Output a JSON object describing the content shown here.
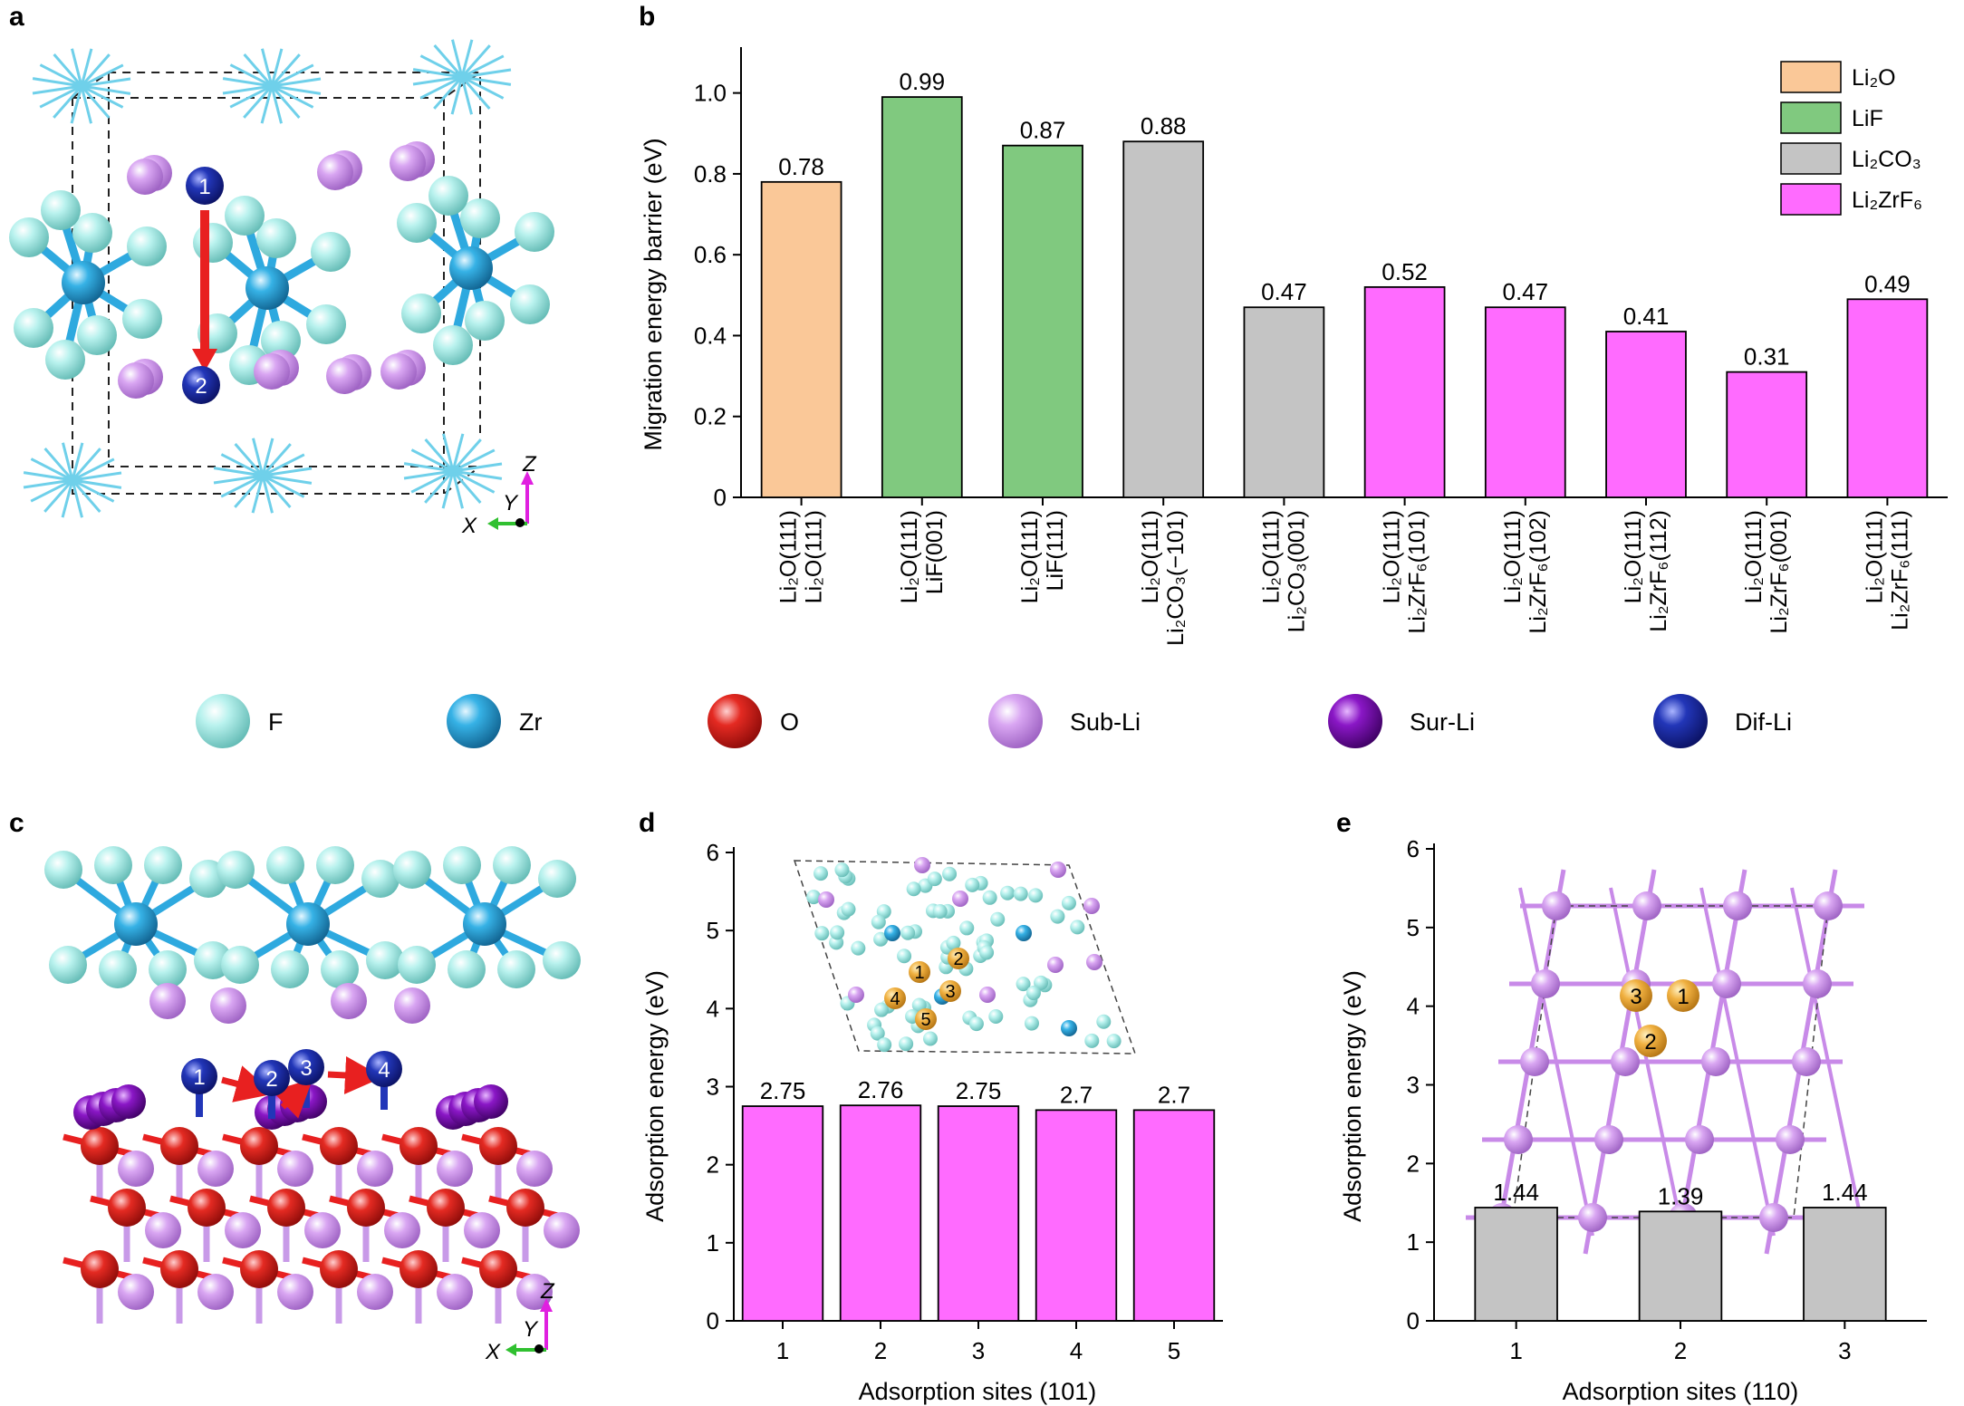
{
  "figure": {
    "panels": {
      "a": "a",
      "b": "b",
      "c": "c",
      "d": "d",
      "e": "e"
    }
  },
  "colors": {
    "Li2O": "#fac898",
    "LiF": "#80c97f",
    "Li2CO3": "#c4c4c4",
    "Li2ZrF6": "#ff6bff",
    "F": "#a8ede8",
    "Zr": "#2ea9df",
    "O": "#e0201b",
    "Sub-Li": "#d59cf0",
    "Sur-Li": "#8611c2",
    "Dif-Li": "#1f2fb3",
    "orange_site": "#f0b040",
    "bond_red": "#e82020"
  },
  "atom_legend": [
    {
      "label": "F",
      "key": "F"
    },
    {
      "label": "Zr",
      "key": "Zr"
    },
    {
      "label": "O",
      "key": "O"
    },
    {
      "label": "Sub-Li",
      "key": "Sub-Li"
    },
    {
      "label": "Sur-Li",
      "key": "Sur-Li"
    },
    {
      "label": "Dif-Li",
      "key": "Dif-Li"
    }
  ],
  "panel_a": {
    "sites": [
      "1",
      "2"
    ],
    "axes": {
      "z": "Z",
      "y": "Y",
      "x": "X"
    }
  },
  "panel_c": {
    "sites": [
      "1",
      "2",
      "3",
      "4"
    ],
    "axes": {
      "z": "Z",
      "y": "Y",
      "x": "X"
    }
  },
  "panel_d_inset": {
    "sites": [
      "1",
      "2",
      "3",
      "4",
      "5"
    ]
  },
  "panel_e_inset": {
    "sites": [
      "3",
      "1",
      "2"
    ]
  },
  "chart_data": [
    {
      "id": "b",
      "type": "bar",
      "ylabel": "Migration energy barrier (eV)",
      "ylim": [
        0,
        1.1
      ],
      "yticks": [
        0,
        0.2,
        0.4,
        0.6,
        0.8,
        1.0
      ],
      "ytick_labels": [
        "0",
        "0.2",
        "0.4",
        "0.6",
        "0.8",
        "1.0"
      ],
      "categories": [
        {
          "line1": "Li₂O(111)",
          "line2": "Li₂O(111)"
        },
        {
          "line1": "Li₂O(111)",
          "line2": "LiF(001)"
        },
        {
          "line1": "Li₂O(111)",
          "line2": "LiF(111)"
        },
        {
          "line1": "Li₂O(111)",
          "line2": "Li₂CO₃(−101)"
        },
        {
          "line1": "Li₂O(111)",
          "line2": "Li₂CO₃(001)"
        },
        {
          "line1": "Li₂O(111)",
          "line2": "Li₂ZrF₆(101)"
        },
        {
          "line1": "Li₂O(111)",
          "line2": "Li₂ZrF₆(102)"
        },
        {
          "line1": "Li₂O(111)",
          "line2": "Li₂ZrF₆(112)"
        },
        {
          "line1": "Li₂O(111)",
          "line2": "Li₂ZrF₆(001)"
        },
        {
          "line1": "Li₂O(111)",
          "line2": "Li₂ZrF₆(111)"
        }
      ],
      "values": [
        0.78,
        0.99,
        0.87,
        0.88,
        0.47,
        0.52,
        0.47,
        0.41,
        0.31,
        0.49
      ],
      "value_labels": [
        "0.78",
        "0.99",
        "0.87",
        "0.88",
        "0.47",
        "0.52",
        "0.47",
        "0.41",
        "0.31",
        "0.49"
      ],
      "groups": [
        "Li2O",
        "LiF",
        "LiF",
        "Li2CO3",
        "Li2CO3",
        "Li2ZrF6",
        "Li2ZrF6",
        "Li2ZrF6",
        "Li2ZrF6",
        "Li2ZrF6"
      ],
      "legend": [
        {
          "key": "Li2O",
          "label": "Li₂O"
        },
        {
          "key": "LiF",
          "label": "LiF"
        },
        {
          "key": "Li2CO3",
          "label": "Li₂CO₃"
        },
        {
          "key": "Li2ZrF6",
          "label": "Li₂ZrF₆"
        }
      ],
      "legend_position": "top-right"
    },
    {
      "id": "d",
      "type": "bar",
      "xlabel": "Adsorption sites (101)",
      "ylabel": "Adsorption energy (eV)",
      "ylim": [
        0,
        6
      ],
      "yticks": [
        0,
        1,
        2,
        3,
        4,
        5,
        6
      ],
      "ytick_labels": [
        "0",
        "1",
        "2",
        "3",
        "4",
        "5",
        "6"
      ],
      "categories": [
        "1",
        "2",
        "3",
        "4",
        "5"
      ],
      "values": [
        2.75,
        2.76,
        2.75,
        2.7,
        2.7
      ],
      "value_labels": [
        "2.75",
        "2.76",
        "2.75",
        "2.7",
        "2.7"
      ],
      "color_key": "Li2ZrF6"
    },
    {
      "id": "e",
      "type": "bar",
      "xlabel": "Adsorption sites (110)",
      "ylabel": "Adsorption energy (eV)",
      "ylim": [
        0,
        6
      ],
      "yticks": [
        0,
        1,
        2,
        3,
        4,
        5,
        6
      ],
      "ytick_labels": [
        "0",
        "1",
        "2",
        "3",
        "4",
        "5",
        "6"
      ],
      "categories": [
        "1",
        "2",
        "3"
      ],
      "values": [
        1.44,
        1.39,
        1.44
      ],
      "value_labels": [
        "1.44",
        "1.39",
        "1.44"
      ],
      "color_key": "Li2CO3"
    }
  ]
}
